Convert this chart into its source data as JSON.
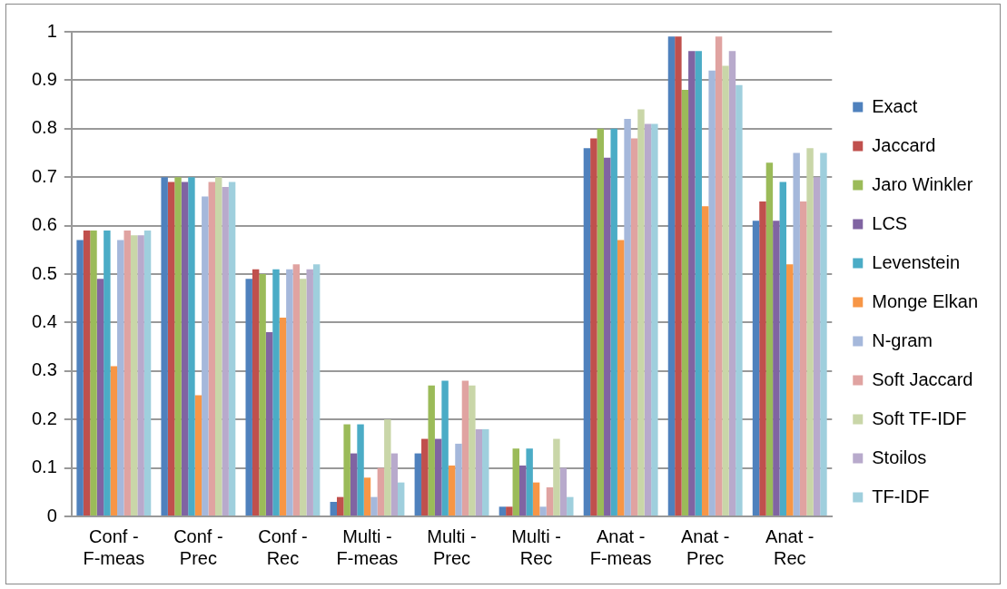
{
  "chart_data": {
    "type": "bar",
    "categories": [
      "Conf - F-meas",
      "Conf - Prec",
      "Conf - Rec",
      "Multi - F-meas",
      "Multi - Prec",
      "Multi - Rec",
      "Anat - F-meas",
      "Anat - Prec",
      "Anat - Rec"
    ],
    "series": [
      {
        "name": "Exact",
        "color": "#4f81bd",
        "values": [
          0.57,
          0.7,
          0.49,
          0.03,
          0.13,
          0.02,
          0.76,
          0.99,
          0.61
        ]
      },
      {
        "name": "Jaccard",
        "color": "#c0504d",
        "values": [
          0.59,
          0.69,
          0.51,
          0.04,
          0.16,
          0.02,
          0.78,
          0.99,
          0.65
        ]
      },
      {
        "name": "Jaro Winkler",
        "color": "#9bbb59",
        "values": [
          0.59,
          0.7,
          0.5,
          0.19,
          0.27,
          0.14,
          0.8,
          0.88,
          0.73
        ]
      },
      {
        "name": "LCS",
        "color": "#8064a2",
        "values": [
          0.49,
          0.69,
          0.38,
          0.13,
          0.16,
          0.105,
          0.74,
          0.96,
          0.61
        ]
      },
      {
        "name": "Levenstein",
        "color": "#4bacc6",
        "values": [
          0.59,
          0.7,
          0.51,
          0.19,
          0.28,
          0.14,
          0.8,
          0.96,
          0.69
        ]
      },
      {
        "name": "Monge Elkan",
        "color": "#f79646",
        "values": [
          0.31,
          0.25,
          0.41,
          0.08,
          0.105,
          0.07,
          0.57,
          0.64,
          0.52
        ]
      },
      {
        "name": "N-gram",
        "color": "#a5b8db",
        "values": [
          0.57,
          0.66,
          0.51,
          0.04,
          0.15,
          0.02,
          0.82,
          0.92,
          0.75
        ]
      },
      {
        "name": "Soft Jaccard",
        "color": "#e0a3a1",
        "values": [
          0.59,
          0.69,
          0.52,
          0.1,
          0.28,
          0.06,
          0.78,
          0.99,
          0.65
        ]
      },
      {
        "name": "Soft TF-IDF",
        "color": "#c9d6a8",
        "values": [
          0.58,
          0.7,
          0.49,
          0.2,
          0.27,
          0.16,
          0.84,
          0.93,
          0.76
        ]
      },
      {
        "name": "Stoilos",
        "color": "#b8aacc",
        "values": [
          0.58,
          0.68,
          0.51,
          0.13,
          0.18,
          0.1,
          0.81,
          0.96,
          0.7
        ]
      },
      {
        "name": "TF-IDF",
        "color": "#9fcfdd",
        "values": [
          0.59,
          0.69,
          0.52,
          0.07,
          0.18,
          0.04,
          0.81,
          0.89,
          0.75
        ]
      }
    ],
    "ylim": [
      0,
      1
    ],
    "yticks": [
      0,
      0.1,
      0.2,
      0.3,
      0.4,
      0.5,
      0.6,
      0.7,
      0.8,
      0.9,
      1
    ],
    "grid": "y",
    "legend": "right"
  }
}
